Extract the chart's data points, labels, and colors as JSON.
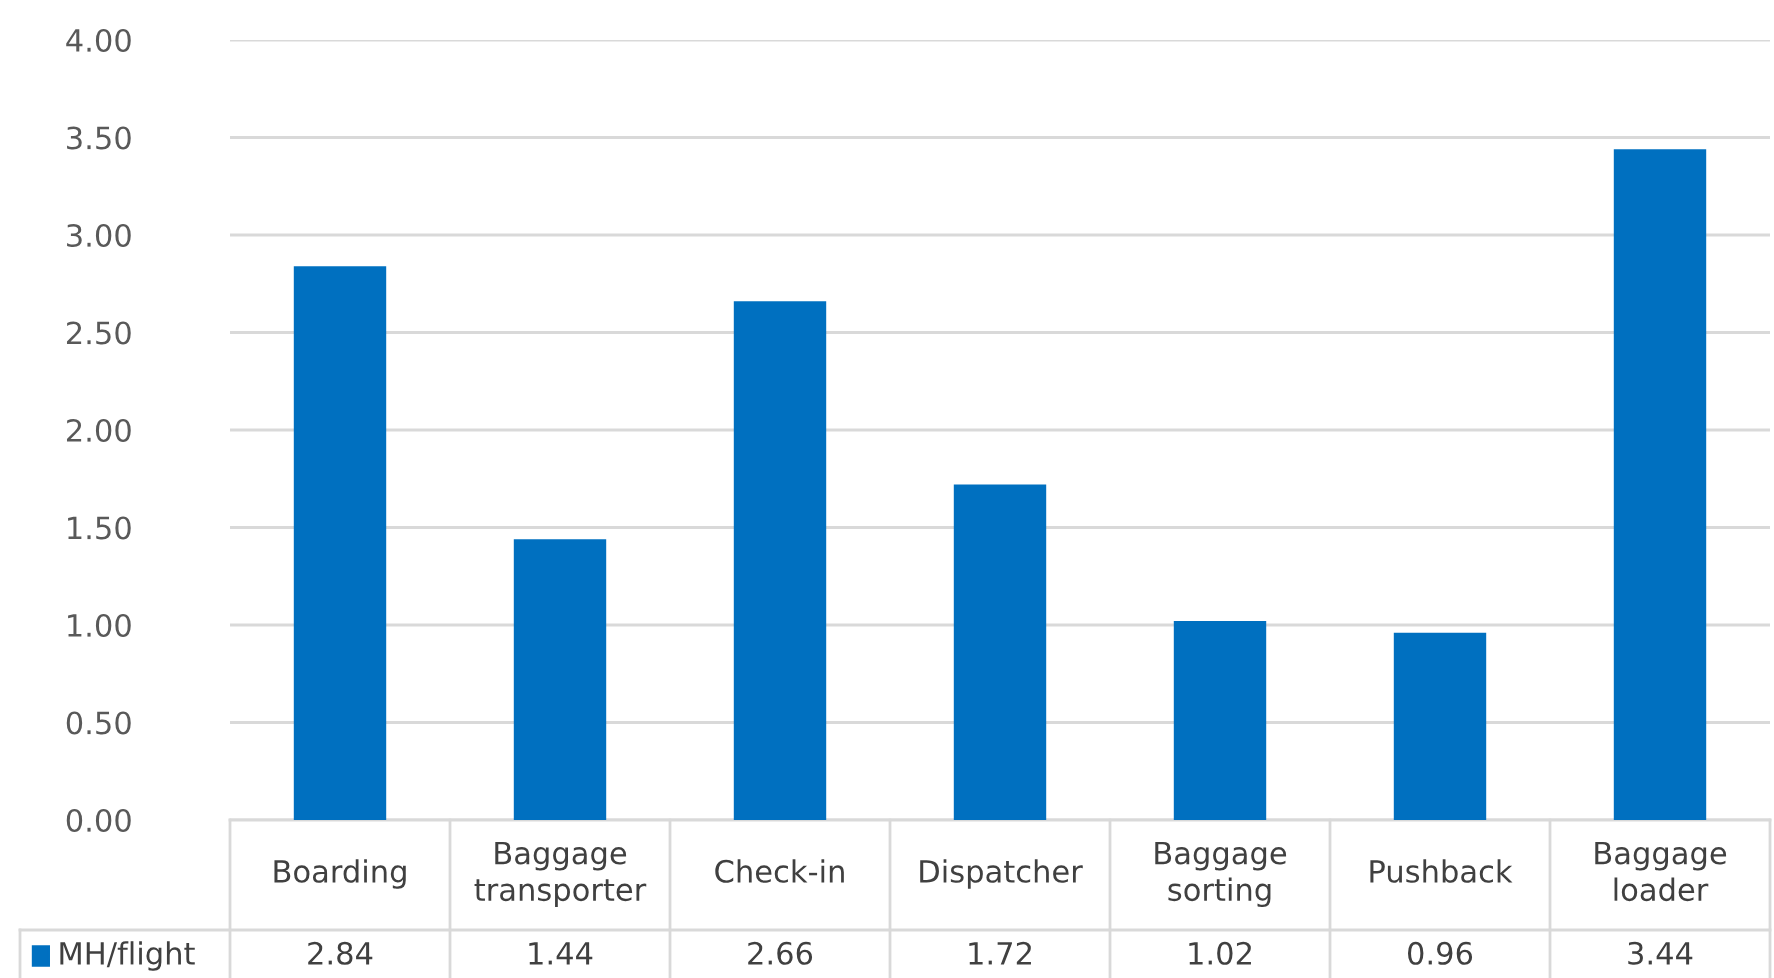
{
  "chart_data": {
    "type": "bar",
    "categories": [
      "Boarding",
      "Baggage\ntransporter",
      "Check-in",
      "Dispatcher",
      "Baggage\nsorting",
      "Pushback",
      "Baggage\nloader"
    ],
    "series": [
      {
        "name": "MH/flight",
        "color": "#0070c0",
        "values": [
          2.84,
          1.44,
          2.66,
          1.72,
          1.02,
          0.96,
          3.44
        ]
      }
    ],
    "ylim": [
      0,
      4
    ],
    "yticks": [
      {
        "value": 0,
        "label": "0.00"
      },
      {
        "value": 0.5,
        "label": "0.50"
      },
      {
        "value": 1,
        "label": "1.00"
      },
      {
        "value": 1.5,
        "label": "1.50"
      },
      {
        "value": 2,
        "label": "2.00"
      },
      {
        "value": 2.5,
        "label": "2.50"
      },
      {
        "value": 3,
        "label": "3.00"
      },
      {
        "value": 3.5,
        "label": "3.50"
      },
      {
        "value": 4,
        "label": "4.00"
      }
    ],
    "grid": "y",
    "data_labels": true,
    "legend": "bottom"
  }
}
